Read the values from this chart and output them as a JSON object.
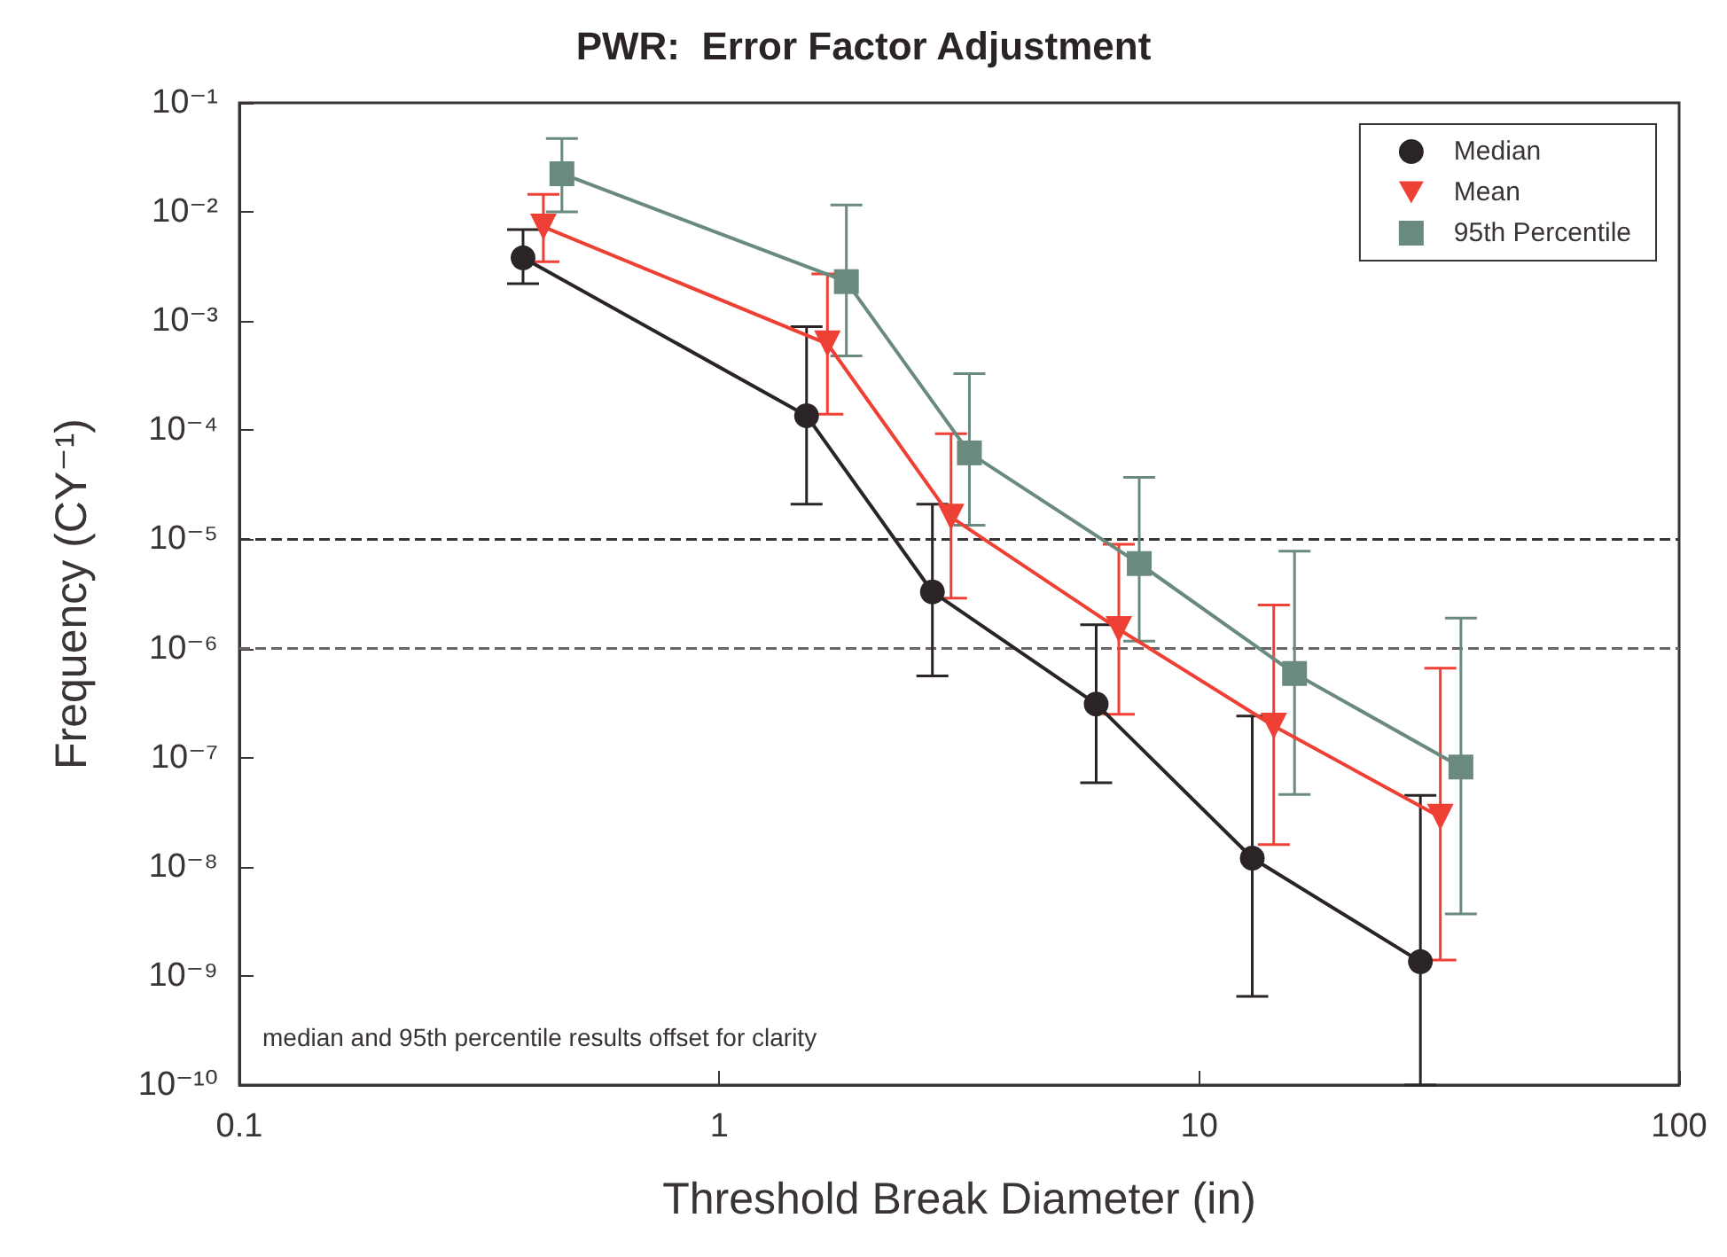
{
  "chart_data": {
    "type": "line",
    "title": "PWR:  Error Factor Adjustment",
    "xlabel": "Threshold Break Diameter (in)",
    "ylabel": "Frequency (CY⁻¹)",
    "log": "xy",
    "xlim": [
      0.1,
      100
    ],
    "xticks": [
      0.1,
      1,
      10,
      100
    ],
    "ylim": [
      1e-10,
      0.1
    ],
    "yticks": [
      {
        "value": 0.1,
        "label": "10⁻¹"
      },
      {
        "value": 0.01,
        "label": "10⁻²"
      },
      {
        "value": 0.001,
        "label": "10⁻³"
      },
      {
        "value": 0.0001,
        "label": "10⁻⁴"
      },
      {
        "value": 1e-05,
        "label": "10⁻⁵"
      },
      {
        "value": 1e-06,
        "label": "10⁻⁶"
      },
      {
        "value": 1e-07,
        "label": "10⁻⁷"
      },
      {
        "value": 1e-08,
        "label": "10⁻⁸"
      },
      {
        "value": 1e-09,
        "label": "10⁻⁹"
      },
      {
        "value": 1e-10,
        "label": "10⁻¹⁰"
      }
    ],
    "grid": false,
    "legend": "top right",
    "line_style": "solid",
    "series": [
      {
        "name": "Median",
        "color": "#2a2426",
        "marker": "circle",
        "x": [
          0.39,
          1.52,
          2.78,
          6.1,
          12.9,
          28.9
        ],
        "values": [
          0.0038,
          0.000136,
          3.3e-06,
          3.1e-07,
          1.2e-08,
          1.35e-09
        ],
        "errors": [
          [
            0.0022,
            0.0069
          ],
          [
            2.1e-05,
            0.00089
          ],
          [
            5.6e-07,
            2.1e-05
          ],
          [
            5.9e-08,
            1.65e-06
          ],
          [
            6.5e-10,
            2.4e-07
          ],
          [
            1e-10,
            4.5e-08
          ]
        ]
      },
      {
        "name": "Mean",
        "color": "#ee4035",
        "marker": "triangle",
        "x": [
          0.43,
          1.68,
          3.04,
          6.8,
          14.3,
          31.8
        ],
        "values": [
          0.0073,
          0.00062,
          1.6e-05,
          1.5e-06,
          1.95e-07,
          2.85e-08
        ],
        "errors": [
          [
            0.0035,
            0.0145
          ],
          [
            0.00014,
            0.0027
          ],
          [
            2.9e-06,
            9.3e-05
          ],
          [
            2.5e-07,
            9e-06
          ],
          [
            1.6e-08,
            2.5e-06
          ],
          [
            1.4e-09,
            6.6e-07
          ]
        ]
      },
      {
        "name": "95th Percentile",
        "color": "#6b8a7e",
        "marker": "square",
        "x": [
          0.47,
          1.84,
          3.32,
          7.5,
          15.8,
          35.1
        ],
        "values": [
          0.0224,
          0.0023,
          6.2e-05,
          6e-06,
          5.9e-07,
          8.2e-08
        ],
        "errors": [
          [
            0.01,
            0.047
          ],
          [
            0.00048,
            0.0116
          ],
          [
            1.35e-05,
            0.00033
          ],
          [
            1.17e-06,
            3.7e-05
          ],
          [
            4.6e-08,
            7.8e-06
          ],
          [
            3.7e-09,
            1.9e-06
          ]
        ]
      }
    ],
    "ref_lines": [
      {
        "axis": "y",
        "value": 1e-05,
        "line_style": "dashed",
        "color": "#3a3436"
      },
      {
        "axis": "y",
        "value": 1e-06,
        "line_style": "dashed",
        "color": "#6a6466"
      }
    ],
    "annotations": [
      "median and 95th percentile results offset for clarity"
    ]
  }
}
